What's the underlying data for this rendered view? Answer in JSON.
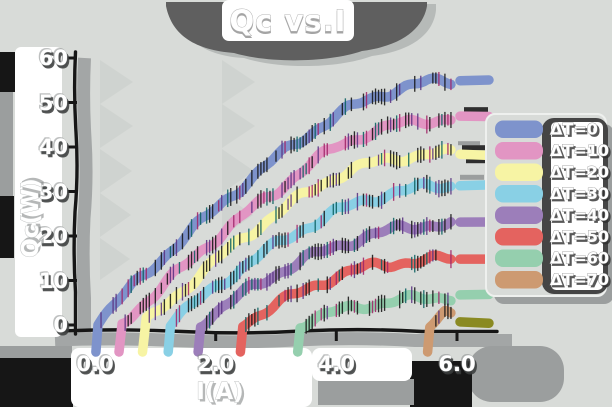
{
  "figure": {
    "background": "#d8dbd8",
    "style_note": "sketchy hand-drawn plot, white labels with heavy dark drop shadows"
  },
  "colors": {
    "spine": "#161616",
    "shadow_gray": "#9ea1a1",
    "shadow_dark": "#3f4242",
    "panel_white": "#ffffff",
    "title_blob": "#5f5f5f",
    "legend_bg": "#d8dbd8",
    "legend_border": "#eef0ee",
    "legend_label_blob": "#454545"
  },
  "chart_data": {
    "type": "line",
    "title": "Qc vs.I",
    "xlabel": "I(A)",
    "ylabel": "Qc(W)",
    "xlim": [
      -0.35,
      6.65
    ],
    "ylim": [
      -2,
      62
    ],
    "xticks": [
      "0.0",
      "2.0",
      "4.0",
      "6.0"
    ],
    "yticks": [
      "0",
      "10",
      "20",
      "30",
      "40",
      "50",
      "60"
    ],
    "grid": false,
    "legend_position": "center right",
    "hatch_mark_colors": [
      "#161616",
      "#161616",
      "#161616",
      "#0d6262",
      "#5a3382",
      "#a12568"
    ],
    "series": [
      {
        "name": "ΔT=0",
        "color": "#7e93cc",
        "points": [
          [
            0,
            0
          ],
          [
            0.5,
            7
          ],
          [
            1,
            13.5
          ],
          [
            1.5,
            20
          ],
          [
            2,
            26
          ],
          [
            2.5,
            32
          ],
          [
            3,
            37.5
          ],
          [
            3.5,
            42.5
          ],
          [
            4,
            47
          ],
          [
            4.5,
            50.5
          ],
          [
            5,
            53
          ],
          [
            5.5,
            54.5
          ],
          [
            6,
            55
          ],
          [
            6.5,
            55
          ]
        ]
      },
      {
        "name": "ΔT=10",
        "color": "#e295c3",
        "points": [
          [
            0.4,
            0
          ],
          [
            1,
            7
          ],
          [
            1.5,
            13.5
          ],
          [
            2,
            19.5
          ],
          [
            2.5,
            25
          ],
          [
            3,
            30
          ],
          [
            3.5,
            35.5
          ],
          [
            4,
            40
          ],
          [
            4.5,
            43
          ],
          [
            5,
            45
          ],
          [
            5.5,
            46
          ],
          [
            6,
            46.5
          ],
          [
            6.5,
            46.5
          ]
        ]
      },
      {
        "name": "ΔT=20",
        "color": "#f7f4a4",
        "points": [
          [
            0.8,
            0
          ],
          [
            1.5,
            8.5
          ],
          [
            2,
            14.5
          ],
          [
            2.5,
            20
          ],
          [
            3,
            25
          ],
          [
            3.5,
            29.5
          ],
          [
            4,
            33.5
          ],
          [
            4.5,
            36
          ],
          [
            5,
            37.5
          ],
          [
            5.5,
            38.5
          ],
          [
            6,
            38.5
          ],
          [
            6.5,
            38.5
          ]
        ]
      },
      {
        "name": "ΔT=30",
        "color": "#89d0e5",
        "points": [
          [
            1.2,
            0
          ],
          [
            2,
            8.5
          ],
          [
            2.5,
            13.5
          ],
          [
            3,
            18
          ],
          [
            3.5,
            22
          ],
          [
            4,
            25.5
          ],
          [
            4.5,
            28
          ],
          [
            5,
            30
          ],
          [
            5.5,
            31
          ],
          [
            6,
            31.5
          ],
          [
            6.5,
            31.5
          ]
        ]
      },
      {
        "name": "ΔT=40",
        "color": "#9c7eba",
        "points": [
          [
            1.7,
            0
          ],
          [
            2.5,
            7.5
          ],
          [
            3,
            11.5
          ],
          [
            3.5,
            15
          ],
          [
            4,
            17.5
          ],
          [
            4.5,
            20
          ],
          [
            5,
            21.5
          ],
          [
            5.5,
            22.5
          ],
          [
            6,
            23
          ],
          [
            6.5,
            23
          ]
        ]
      },
      {
        "name": "ΔT=50",
        "color": "#e4635f",
        "points": [
          [
            2.4,
            0
          ],
          [
            3,
            4.5
          ],
          [
            3.5,
            8
          ],
          [
            4,
            11
          ],
          [
            4.5,
            13
          ],
          [
            5,
            14
          ],
          [
            5.5,
            14.5
          ],
          [
            6,
            15
          ],
          [
            6.5,
            15
          ]
        ]
      },
      {
        "name": "ΔT=60",
        "color": "#95cfae",
        "points": [
          [
            3.35,
            0
          ],
          [
            4,
            3
          ],
          [
            4.5,
            4.5
          ],
          [
            5,
            5.5
          ],
          [
            5.5,
            6
          ],
          [
            6,
            6.5
          ],
          [
            6.5,
            6.5
          ]
        ]
      },
      {
        "name": "ΔT=70",
        "color": "#cd9a71",
        "end_cap_color": "#8a8a22",
        "points": [
          [
            5.5,
            0
          ],
          [
            5.8,
            2.5
          ],
          [
            6,
            1.5
          ],
          [
            6.3,
            0.5
          ]
        ]
      }
    ]
  }
}
